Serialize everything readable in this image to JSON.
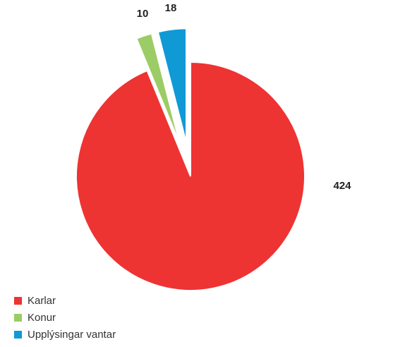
{
  "chart_data": {
    "type": "pie",
    "title": "",
    "exploded": true,
    "legend_position": "bottom-left",
    "series": [
      {
        "name": "Karlar",
        "value": 424,
        "color": "#ee3333"
      },
      {
        "name": "Konur",
        "value": 10,
        "color": "#9ccc65"
      },
      {
        "name": "Upplýsingar vantar",
        "value": 18,
        "color": "#0f9ad6"
      }
    ]
  }
}
